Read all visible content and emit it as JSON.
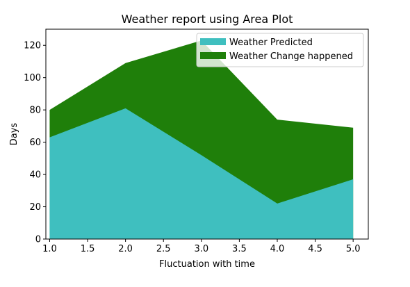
{
  "chart_data": {
    "type": "area",
    "title": "Weather report using Area Plot",
    "xlabel": "Fluctuation with time",
    "ylabel": "Days",
    "x": [
      1,
      2,
      3,
      4,
      5
    ],
    "series": [
      {
        "name": "Weather Predicted",
        "values": [
          63,
          81,
          52,
          22,
          37
        ],
        "color": "#3fbfbf"
      },
      {
        "name": "Weather Change happened",
        "values": [
          80,
          109,
          123,
          74,
          69
        ],
        "color": "#1f7f0a"
      }
    ],
    "xlim": [
      0.95,
      5.2
    ],
    "ylim": [
      0,
      130
    ],
    "xticks": [
      "1.0",
      "1.5",
      "2.0",
      "2.5",
      "3.0",
      "3.5",
      "4.0",
      "4.5",
      "5.0"
    ],
    "yticks": [
      "0",
      "20",
      "40",
      "60",
      "80",
      "100",
      "120"
    ],
    "grid": false,
    "legend_position": "top-right"
  }
}
